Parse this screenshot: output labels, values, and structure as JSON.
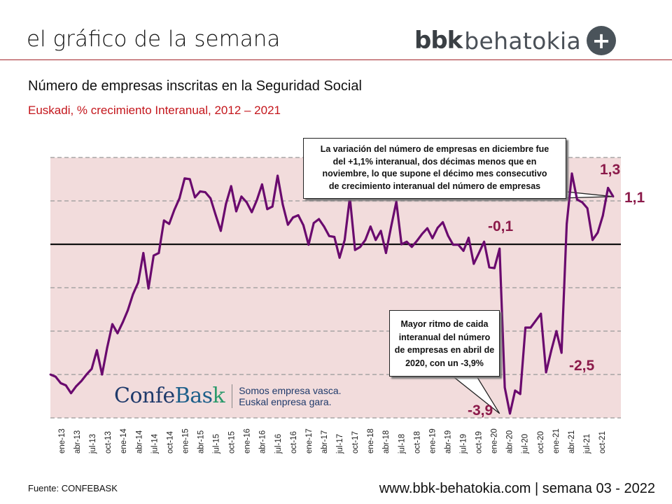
{
  "header": {
    "title": "el gráfico de la semana",
    "logo_bold": "bbk",
    "logo_light": "behatokia",
    "logo_plus": "+"
  },
  "colors": {
    "accent_red": "#c4161c",
    "series": "#6a0a6e",
    "plot_bg": "#f2dcdc",
    "label": "#8b1a4a"
  },
  "chart_data": {
    "type": "line",
    "title": "Número de empresas inscritas en la Seguridad Social",
    "subtitle": "Euskadi, % crecimiento Interanual, 2012 – 2021",
    "xlabel": "",
    "ylabel": "% crecimiento interanual",
    "ylim": [
      -4,
      2
    ],
    "yticks": [
      -4,
      -3,
      -2,
      -1,
      0,
      1,
      2
    ],
    "grid": true,
    "tick_labels": [
      "ene-13",
      "abr-13",
      "jul-13",
      "oct-13",
      "ene-14",
      "abr-14",
      "jul-14",
      "oct-14",
      "ene-15",
      "abr-15",
      "jul-15",
      "oct-15",
      "ene-16",
      "abr-16",
      "jul-16",
      "oct-16",
      "ene-17",
      "abr-17",
      "jul-17",
      "oct-17",
      "ene-18",
      "abr-18",
      "jul-18",
      "oct-18",
      "ene-19",
      "abr-19",
      "jul-19",
      "oct-19",
      "ene-20",
      "abr-20",
      "jul-20",
      "oct-20",
      "ene-21",
      "abr-21",
      "jul-21",
      "oct-21"
    ],
    "series": [
      {
        "name": "Empresas inscritas (% interanual)",
        "values": [
          -3.0,
          -3.05,
          -3.2,
          -3.25,
          -3.43,
          -3.27,
          -3.15,
          -3.0,
          -2.87,
          -2.44,
          -3.0,
          -2.38,
          -1.84,
          -2.05,
          -1.8,
          -1.52,
          -1.15,
          -0.88,
          -0.2,
          -1.02,
          -0.26,
          -0.2,
          0.55,
          0.47,
          0.79,
          1.06,
          1.52,
          1.5,
          1.08,
          1.22,
          1.2,
          1.06,
          0.68,
          0.31,
          0.93,
          1.34,
          0.76,
          1.1,
          0.97,
          0.74,
          1.02,
          1.38,
          0.81,
          0.87,
          1.58,
          0.92,
          0.45,
          0.62,
          0.67,
          0.44,
          -0.01,
          0.49,
          0.58,
          0.41,
          0.19,
          0.17,
          -0.31,
          0.1,
          1.08,
          -0.13,
          -0.06,
          0.1,
          0.41,
          0.1,
          0.31,
          -0.2,
          0.41,
          0.98,
          0.0,
          0.06,
          -0.06,
          0.08,
          0.24,
          0.37,
          0.14,
          0.38,
          0.51,
          0.2,
          -0.01,
          -0.01,
          -0.15,
          0.15,
          -0.45,
          -0.2,
          0.06,
          -0.53,
          -0.55,
          -0.1,
          -3.3,
          -3.9,
          -3.37,
          -3.45,
          -1.92,
          -1.92,
          -1.76,
          -1.6,
          -2.95,
          -2.45,
          -2.0,
          -2.5,
          0.47,
          1.63,
          1.03,
          0.97,
          0.83,
          0.1,
          0.27,
          0.66,
          1.3,
          1.1
        ]
      }
    ],
    "data_labels": [
      {
        "text": "1,3",
        "value": 1.3
      },
      {
        "text": "1,1",
        "value": 1.1
      },
      {
        "text": "-0,1",
        "value": -0.1
      },
      {
        "text": "-2,5",
        "value": -2.5
      },
      {
        "text": "-3,9",
        "value": -3.9
      }
    ],
    "annotations": [
      "La variación del número de empresas en diciembre fue del +1,1% interanual, dos décimas menos que en noviembre, lo que supone el décimo mes consecutivo de crecimiento interanual del número de empresas",
      "Mayor ritmo de caida interanual del número de empresas en abril de 2020, con un -3,9%"
    ],
    "annotation_lines": [
      [
        "La variación del número de empresas en diciembre fue",
        "del +1,1% interanual, dos décimas menos que en",
        "noviembre, lo que supone el décimo mes consecutivo",
        "de crecimiento interanual del número de empresas"
      ],
      [
        "Mayor ritmo de caida",
        "interanual del número",
        "de empresas en abril de",
        "2020, con un -3,9%"
      ]
    ]
  },
  "watermark": {
    "name_a": "Confe",
    "name_b": "Bas",
    "name_c": "k",
    "tagline_1": "Somos empresa vasca.",
    "tagline_2": "Euskal enpresa gara."
  },
  "footer": {
    "source": "Fuente: CONFEBASK",
    "url_week": "www.bbk-behatokia.com | semana 03 - 2022"
  }
}
